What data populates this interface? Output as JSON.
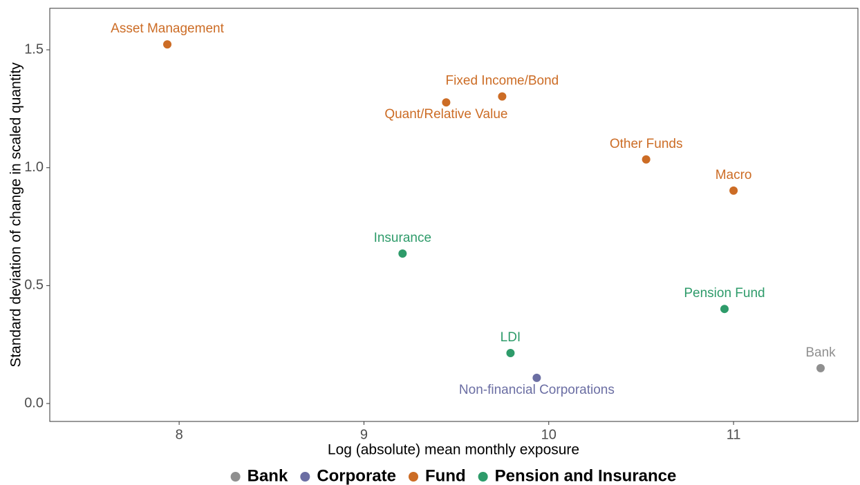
{
  "chart_data": {
    "type": "scatter",
    "x_label": "Log (absolute) mean monthly exposure",
    "y_label": "Standard deviation of change in scaled quantity",
    "xlim": [
      7.3,
      11.673
    ],
    "ylim": [
      -0.076,
      1.676
    ],
    "xticks": [
      8,
      9,
      10,
      11
    ],
    "yticks": [
      {
        "value": 0,
        "label": "0.0"
      },
      0.5,
      {
        "value": 1,
        "label": "1.0"
      },
      1.5
    ],
    "grid": false,
    "legend": "bottom",
    "series": [
      {
        "name": "Bank",
        "color": "#8f8f8f",
        "labels": [
          "Bank"
        ],
        "x": [
          11.471
        ],
        "values": [
          0.15
        ]
      },
      {
        "name": "Corporate",
        "color": "#6b6ea3",
        "labels": [
          "Non-financial Corporations"
        ],
        "x": [
          9.935
        ],
        "values": [
          0.109
        ]
      },
      {
        "name": "Fund",
        "color": "#cc6c25",
        "labels": [
          "Asset Management",
          "Quant/Relative Value",
          "Fixed Income/Bond",
          "Other Funds",
          "Macro"
        ],
        "x": [
          7.936,
          9.445,
          9.748,
          10.527,
          11.0
        ],
        "values": [
          1.523,
          1.277,
          1.302,
          1.035,
          0.903
        ]
      },
      {
        "name": "Pension and Insurance",
        "color": "#2e9b6a",
        "labels": [
          "Insurance",
          "Pension Fund",
          "LDI"
        ],
        "x": [
          9.209,
          10.951,
          9.793
        ],
        "values": [
          0.636,
          0.401,
          0.214
        ]
      }
    ]
  }
}
